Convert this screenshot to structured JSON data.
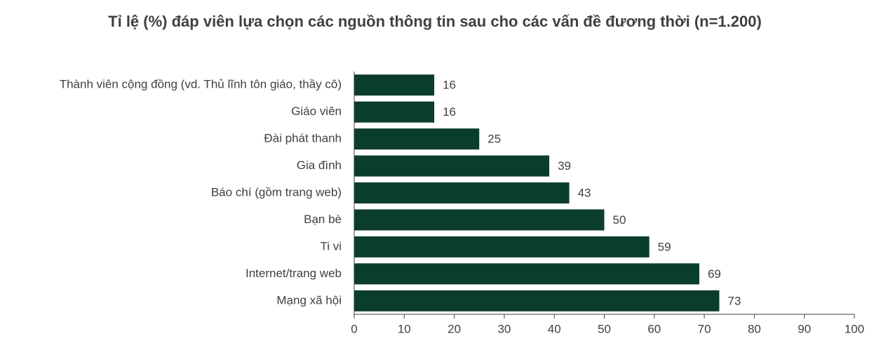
{
  "chart_data": {
    "type": "bar",
    "orientation": "horizontal",
    "title": "Tỉ lệ (%) đáp viên lựa chọn các nguồn thông tin sau cho các vấn đề đương thời (n=1.200)",
    "categories": [
      "Thành viên cộng đồng (vd. Thủ lĩnh tôn giáo, thầy cô)",
      "Giáo viên",
      "Đài phát thanh",
      "Gia đình",
      "Báo chí (gồm trang web)",
      "Bạn bè",
      "Ti vi",
      "Internet/trang web",
      "Mạng xã hội"
    ],
    "values": [
      16,
      16,
      25,
      39,
      43,
      50,
      59,
      69,
      73
    ],
    "color": "#0b3d2e",
    "xlim": [
      0,
      100
    ],
    "xticks": [
      0,
      10,
      20,
      30,
      40,
      50,
      60,
      70,
      80,
      90,
      100
    ],
    "grid": false
  }
}
